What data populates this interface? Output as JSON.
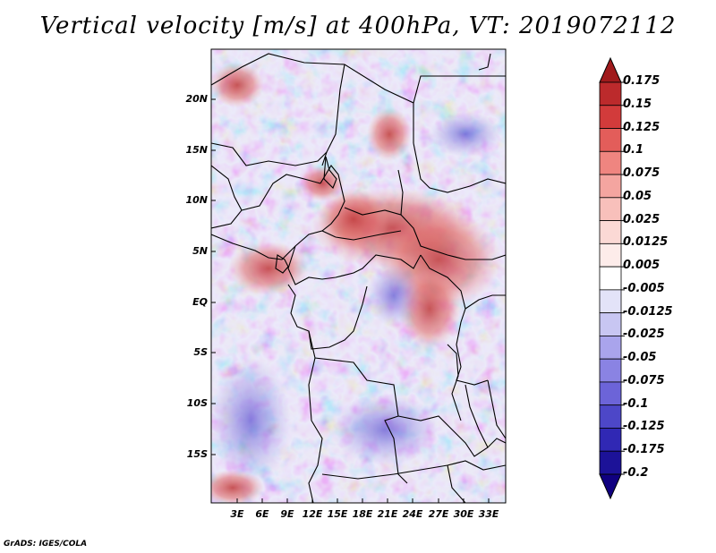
{
  "title": "Vertical velocity [m/s] at 400hPa, VT: 2019072112",
  "footer": "GrADS: IGES/COLA",
  "map": {
    "lat_labels": [
      "20N",
      "15N",
      "10N",
      "5N",
      "EQ",
      "5S",
      "10S",
      "15S"
    ],
    "lon_labels": [
      "3E",
      "6E",
      "9E",
      "12E",
      "15E",
      "18E",
      "21E",
      "24E",
      "27E",
      "30E",
      "33E"
    ]
  },
  "colorbar": {
    "labels": [
      "0.175",
      "0.15",
      "0.125",
      "0.1",
      "0.075",
      "0.05",
      "0.025",
      "0.0125",
      "0.005",
      "-0.005",
      "-0.0125",
      "-0.025",
      "-0.05",
      "-0.075",
      "-0.1",
      "-0.125",
      "-0.175",
      "-0.2"
    ],
    "colors": [
      "#a01a1c",
      "#bc2a2c",
      "#d23b3b",
      "#e35d5a",
      "#ef8580",
      "#f4a5a0",
      "#f8c0bb",
      "#fbd9d5",
      "#fdecea",
      "#ffffff",
      "#e3e3f8",
      "#c8c6f2",
      "#a9a4ec",
      "#8a83e3",
      "#6c64d8",
      "#4d47c8",
      "#3028b4",
      "#1c1298",
      "#100080"
    ]
  },
  "colors": {
    "positive": "#d23b3b",
    "negative": "#6c64d8",
    "neutral": "#ffffff",
    "borders": "#000000"
  }
}
